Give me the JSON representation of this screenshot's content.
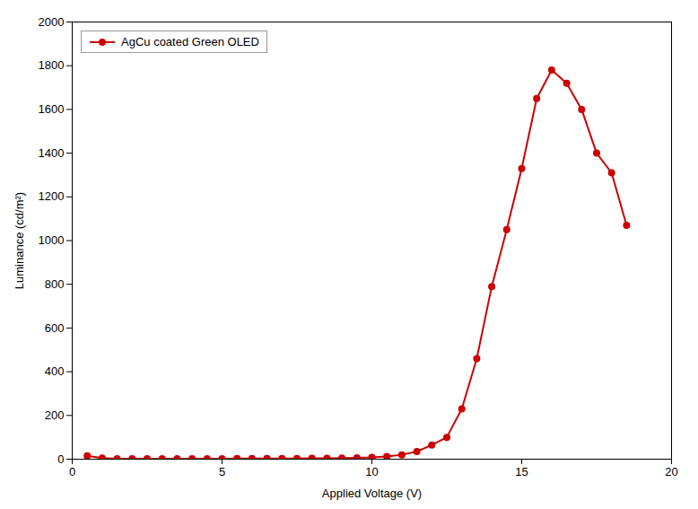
{
  "chart_data": {
    "type": "line",
    "x": [
      0.5,
      1.0,
      1.5,
      2.0,
      2.5,
      3.0,
      3.5,
      4.0,
      4.5,
      5.0,
      5.5,
      6.0,
      6.5,
      7.0,
      7.5,
      8.0,
      8.5,
      9.0,
      9.5,
      10.0,
      10.5,
      11.0,
      11.5,
      12.0,
      12.5,
      13.0,
      13.5,
      14.0,
      14.5,
      15.0,
      15.5,
      16.0,
      16.5,
      17.0,
      17.5,
      18.0,
      18.5
    ],
    "series": [
      {
        "name": "AgCu coated Green OLED",
        "color": "#cc0000",
        "marker": "circle",
        "values": [
          15,
          5,
          2,
          2,
          2,
          2,
          2,
          2,
          2,
          2,
          3,
          3,
          3,
          3,
          3,
          4,
          4,
          5,
          6,
          8,
          12,
          20,
          35,
          65,
          100,
          230,
          460,
          790,
          1050,
          1330,
          1650,
          1780,
          1720,
          1600,
          1400,
          1310,
          1070
        ]
      }
    ],
    "xlabel": "Applied Voltage (V)",
    "ylabel": "Luminance (cd/m²)",
    "xlim": [
      0,
      20
    ],
    "ylim": [
      0,
      2000
    ],
    "xticks": [
      0,
      5,
      10,
      15,
      20
    ],
    "yticks": [
      0,
      200,
      400,
      600,
      800,
      1000,
      1200,
      1400,
      1600,
      1800,
      2000
    ],
    "legend": "upper left",
    "grid": false
  }
}
